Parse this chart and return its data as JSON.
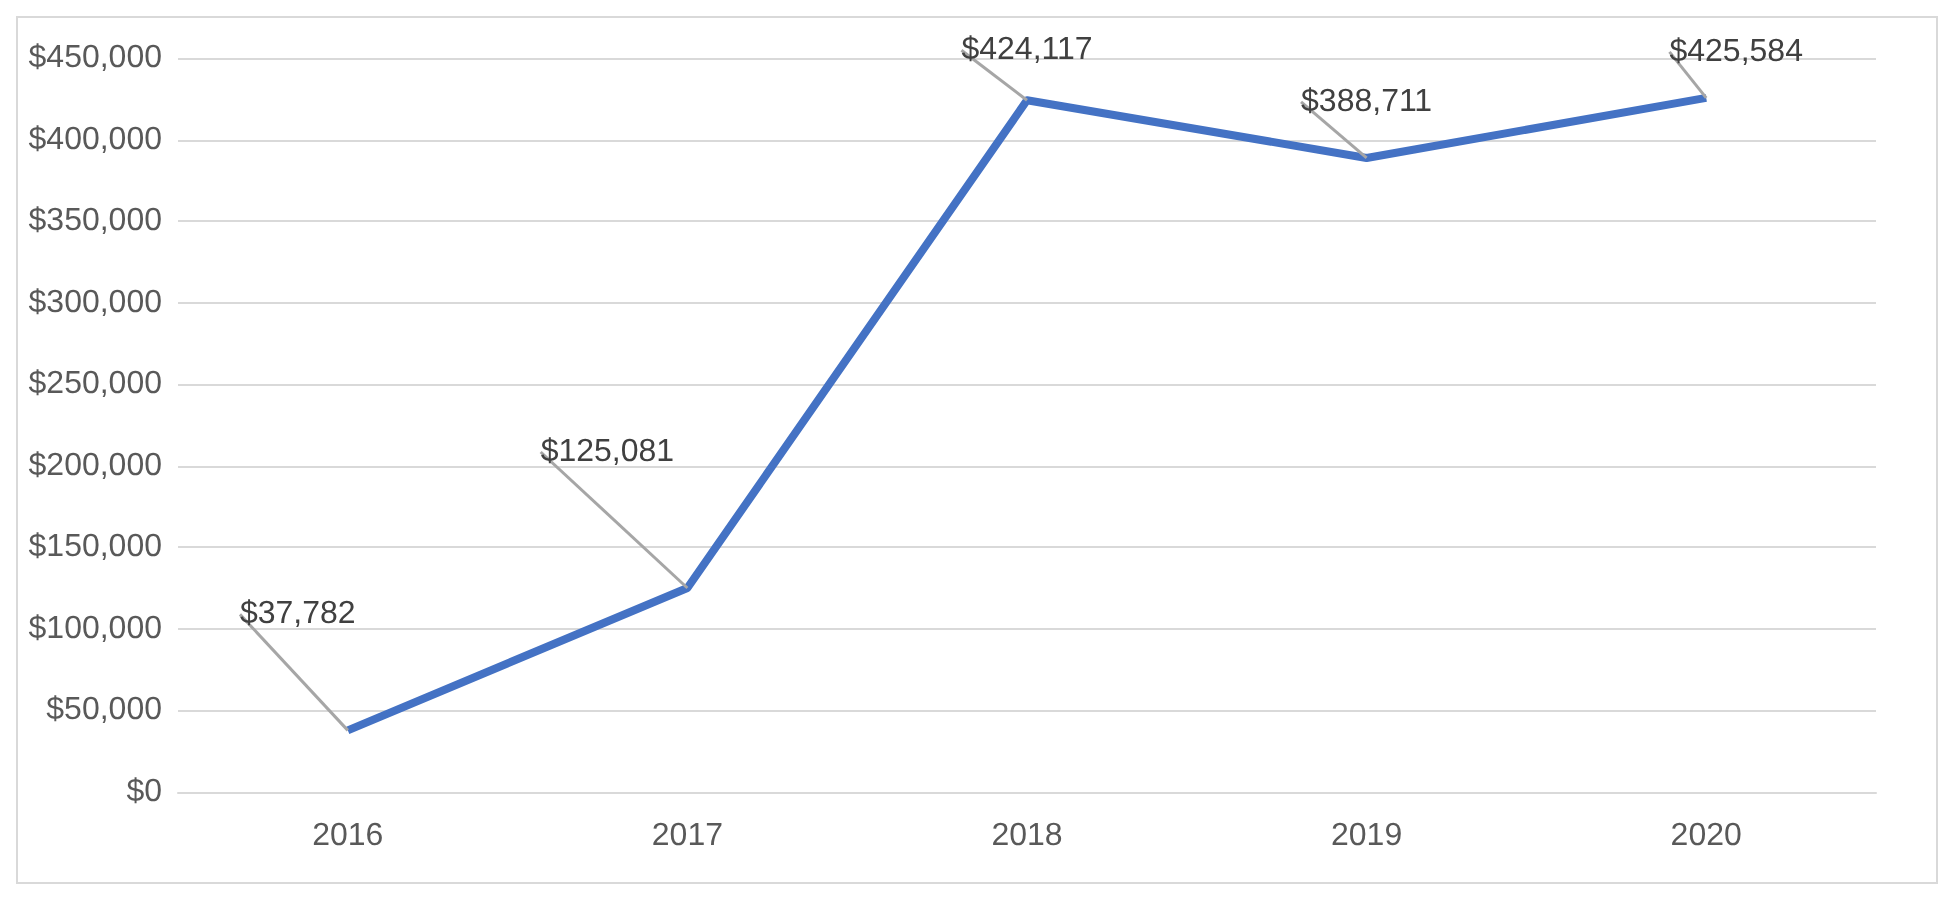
{
  "chart_data": {
    "type": "line",
    "categories": [
      "2016",
      "2017",
      "2018",
      "2019",
      "2020"
    ],
    "values": [
      37782,
      125081,
      424117,
      388711,
      425584
    ],
    "value_labels": [
      "$37,782",
      "$125,081",
      "$424,117",
      "$388,711",
      "$425,584"
    ],
    "color": "#4472c4",
    "ylim": [
      0,
      450000
    ],
    "yticks": [
      {
        "value": 0,
        "label": "$0"
      },
      {
        "value": 50000,
        "label": "$50,000"
      },
      {
        "value": 100000,
        "label": "$100,000"
      },
      {
        "value": 150000,
        "label": "$150,000"
      },
      {
        "value": 200000,
        "label": "$200,000"
      },
      {
        "value": 250000,
        "label": "$250,000"
      },
      {
        "value": 300000,
        "label": "$300,000"
      },
      {
        "value": 350000,
        "label": "$350,000"
      },
      {
        "value": 400000,
        "label": "$400,000"
      },
      {
        "value": 450000,
        "label": "$450,000"
      }
    ],
    "grid": true
  }
}
